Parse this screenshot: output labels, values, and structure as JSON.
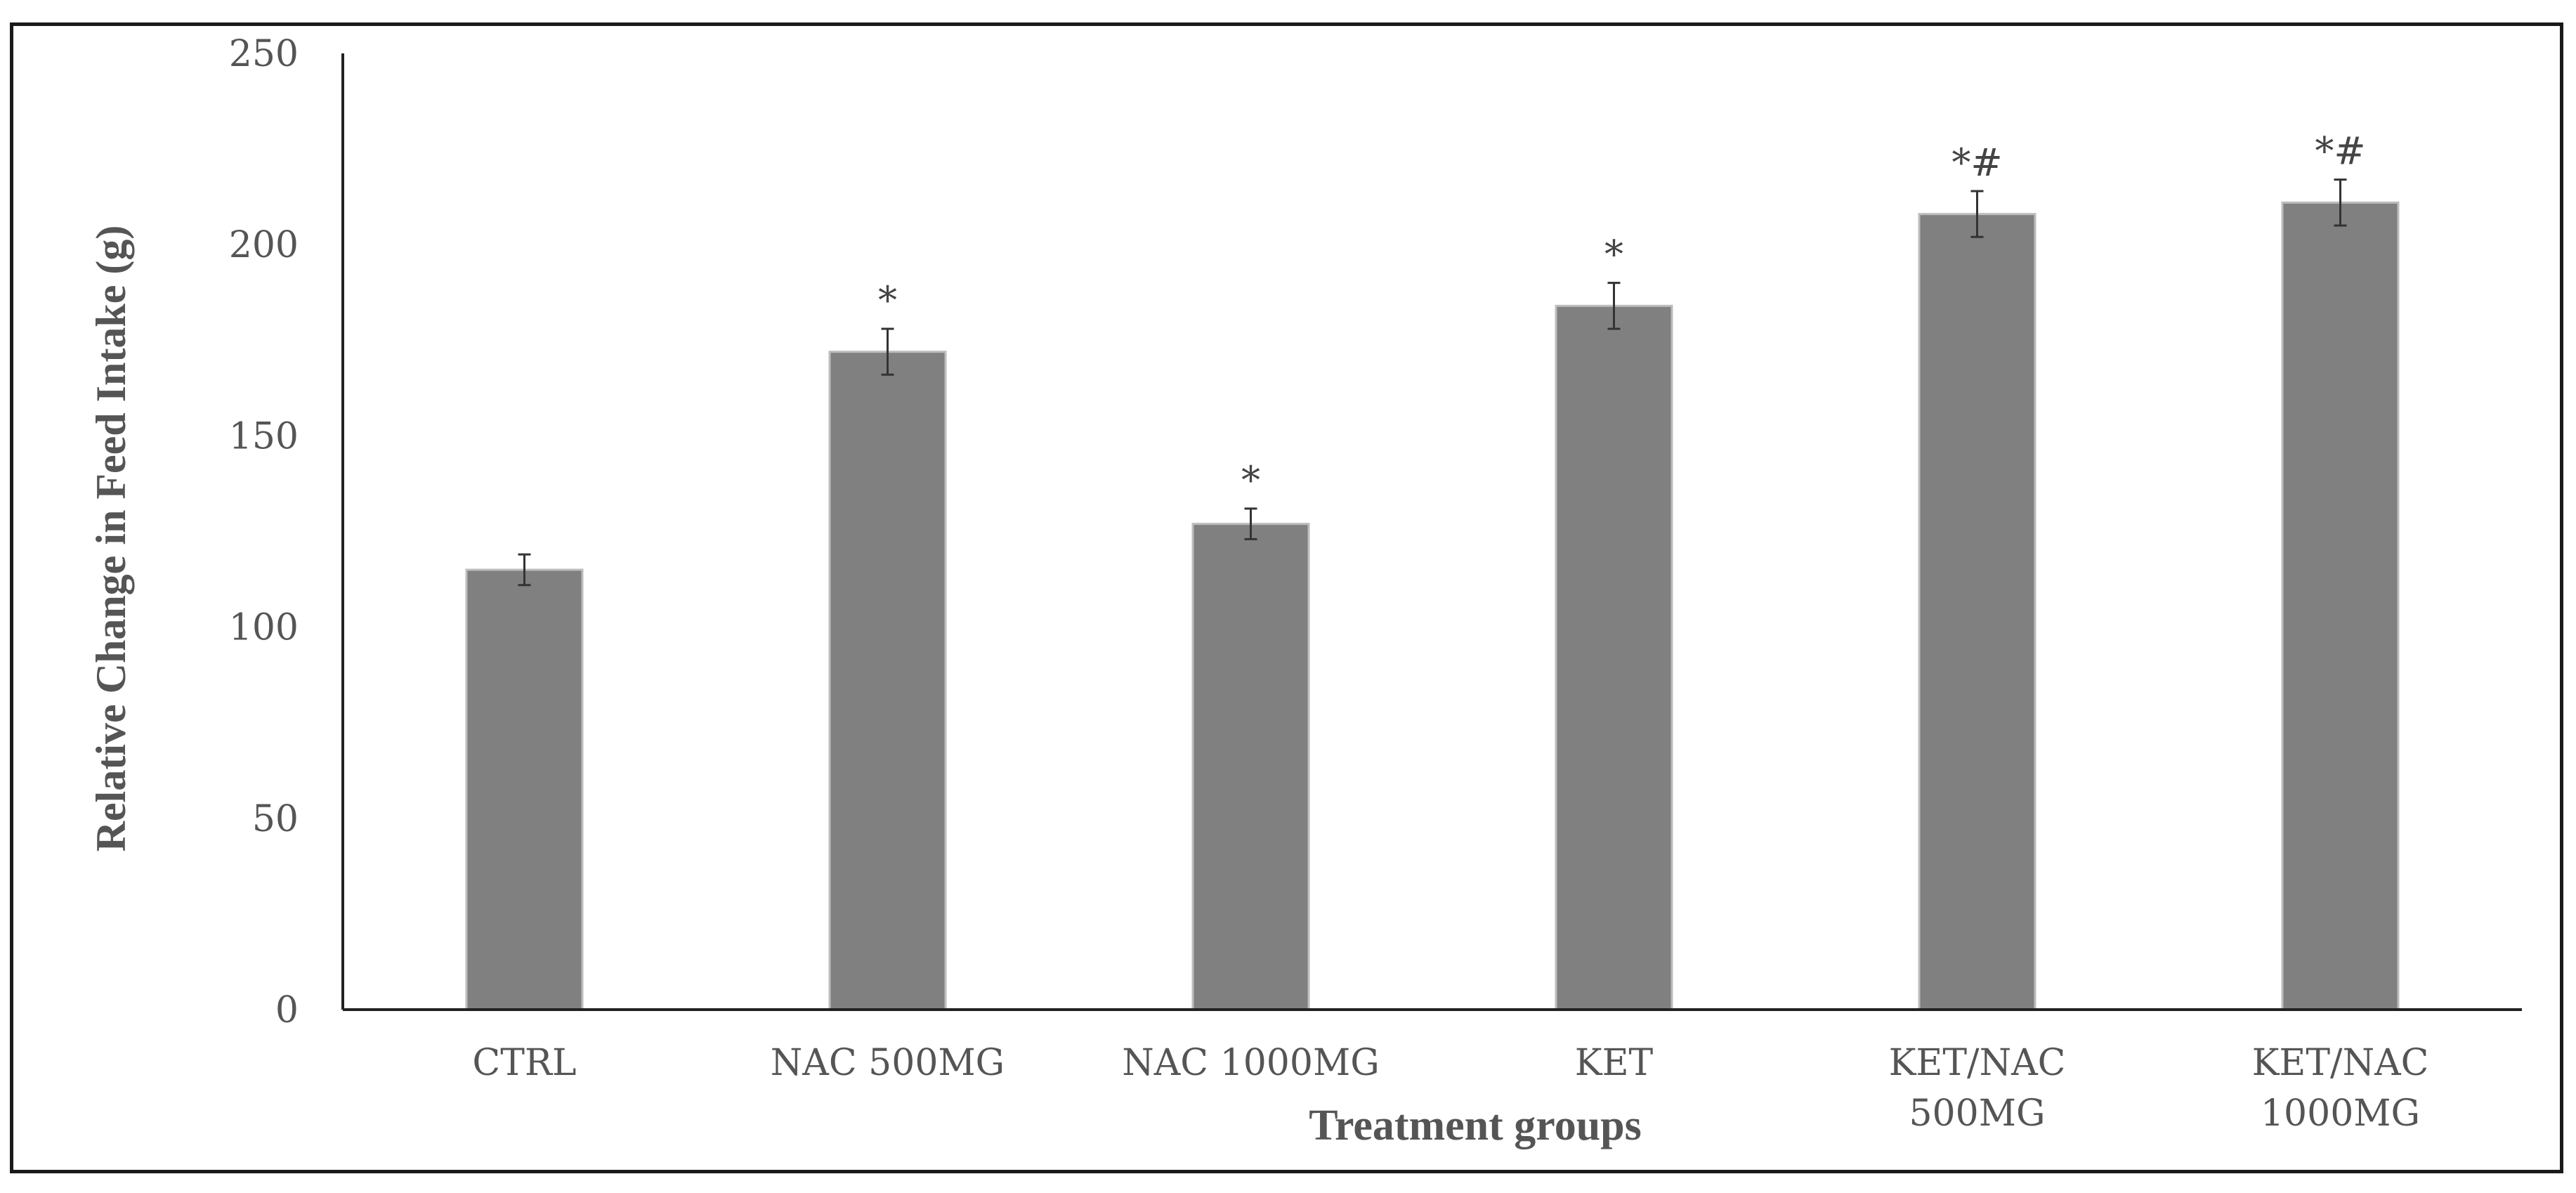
{
  "chart_data": {
    "type": "bar",
    "xlabel": "Treatment groups",
    "ylabel": "Relative Change in Feed Intake (g)",
    "ylim": [
      0,
      250
    ],
    "yticks": [
      0,
      50,
      100,
      150,
      200,
      250
    ],
    "grid": false,
    "legend": "none",
    "bar_color": "#808080",
    "categories": [
      [
        "CTRL"
      ],
      [
        "NAC 500MG"
      ],
      [
        "NAC 1000MG"
      ],
      [
        "KET"
      ],
      [
        "KET/NAC",
        "500MG"
      ],
      [
        "KET/NAC",
        "1000MG"
      ]
    ],
    "values": [
      115,
      172,
      127,
      184,
      208,
      211
    ],
    "errors": [
      4,
      6,
      4,
      6,
      6,
      6
    ],
    "annotations": [
      "",
      "*",
      "*",
      "*",
      "*#",
      "*#"
    ]
  }
}
